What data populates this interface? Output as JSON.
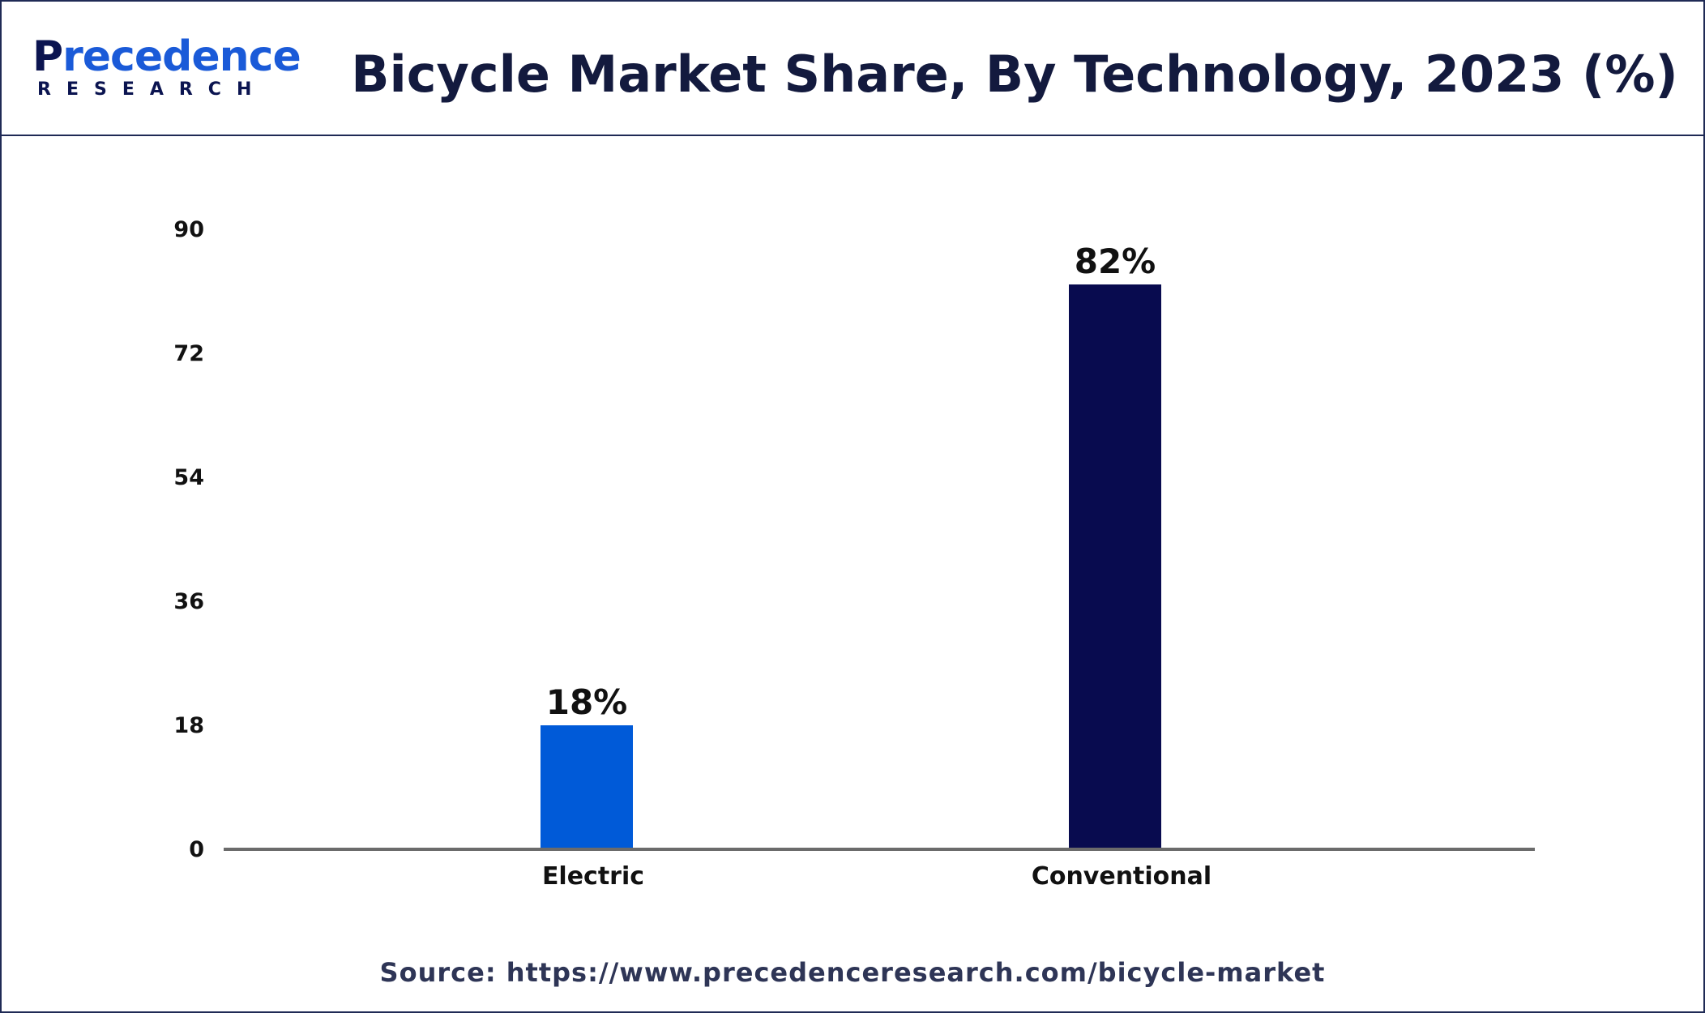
{
  "brand": {
    "logo_word_part1": "P",
    "logo_word_part2": "recedence",
    "logo_sub": "RESEARCH",
    "primary_color": "#0b1450",
    "accent_color": "#1a5ad8"
  },
  "header": {
    "title": "Bicycle Market Share, By Technology, 2023 (%)"
  },
  "footer": {
    "source": "Source: https://www.precedenceresearch.com/bicycle-market"
  },
  "chart_data": {
    "type": "bar",
    "title": "Bicycle Market Share, By Technology, 2023 (%)",
    "xlabel": "",
    "ylabel": "",
    "categories": [
      "Electric",
      "Conventional"
    ],
    "values": [
      18,
      82
    ],
    "data_labels": [
      "18%",
      "82%"
    ],
    "bar_colors": [
      "#005ad8",
      "#080b4f"
    ],
    "ylim": [
      0,
      90
    ],
    "yticks": [
      0,
      18,
      36,
      54,
      72,
      90
    ],
    "grid": false,
    "legend": "none"
  }
}
